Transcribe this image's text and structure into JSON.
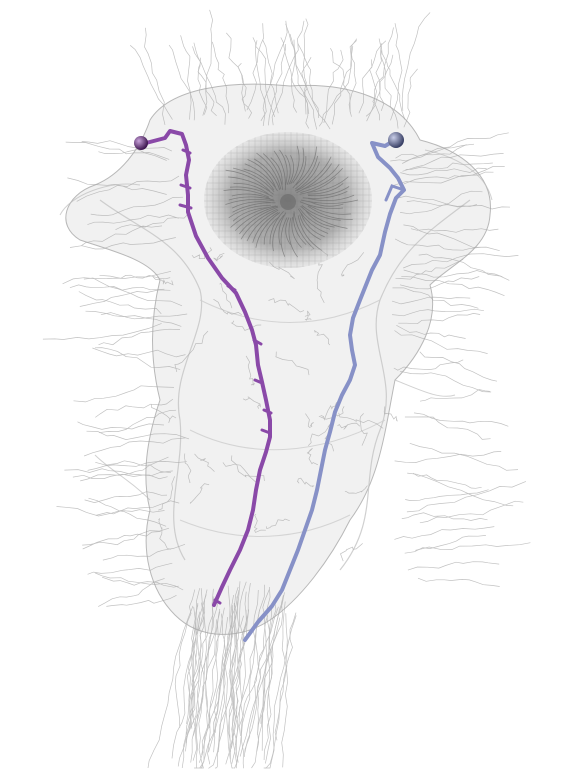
{
  "scene": {
    "description_tag": "neuron-rendering",
    "background_color": "#ffffff",
    "mesh_color": "#cfcfcf",
    "mesh_edge_color": "#9a9a9a",
    "fiber_color": "#a8a8a8",
    "neuropil_color": "#8c8c8c"
  },
  "neurons": [
    {
      "name": "left-neuron",
      "color": "#8a49a8",
      "soma_color": "#5e2a74"
    },
    {
      "name": "right-neuron",
      "color": "#8791c7",
      "soma_color": "#5d6690"
    }
  ]
}
